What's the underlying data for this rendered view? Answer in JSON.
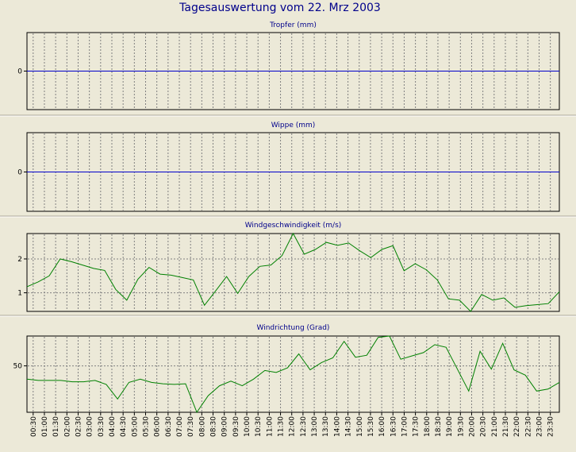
{
  "window": {
    "title": "Tagesauswertung vom 22. Mrz 2003"
  },
  "colors": {
    "background": "#ece9d8",
    "panel_title": "#00008b",
    "zero_line": "#0000cc",
    "series_line": "#008000",
    "grid": "#808080",
    "frame": "#000000"
  },
  "chart_data": [
    {
      "type": "line",
      "title": "Tropfer (mm)",
      "yticks": [
        0
      ],
      "ylim": [
        -1,
        1
      ],
      "grid": true,
      "series": [
        {
          "values": [
            0,
            0
          ]
        }
      ]
    },
    {
      "type": "line",
      "title": "Wippe (mm)",
      "yticks": [
        0
      ],
      "ylim": [
        -1,
        1
      ],
      "grid": true,
      "series": [
        {
          "values": [
            0,
            0
          ]
        }
      ]
    },
    {
      "type": "line",
      "title": "Windgeschwindigkeit (m/s)",
      "yticks": [
        1,
        2
      ],
      "ylim": [
        0.45,
        2.75
      ],
      "grid": true,
      "series": [
        {
          "values": [
            1.18,
            1.32,
            1.5,
            2.0,
            1.92,
            1.82,
            1.72,
            1.66,
            1.1,
            0.78,
            1.4,
            1.75,
            1.55,
            1.52,
            1.45,
            1.38,
            0.63,
            1.05,
            1.48,
            0.98,
            1.48,
            1.78,
            1.82,
            2.1,
            2.75,
            2.14,
            2.28,
            2.49,
            2.4,
            2.47,
            2.24,
            2.04,
            2.28,
            2.39,
            1.65,
            1.86,
            1.68,
            1.38,
            0.82,
            0.78,
            0.45,
            0.95,
            0.78,
            0.85,
            0.57,
            0.62,
            0.65,
            0.68,
            1.03
          ]
        }
      ]
    },
    {
      "type": "line",
      "title": "Windrichtung (Grad)",
      "yticks": [
        50
      ],
      "ylim": [
        -20,
        95
      ],
      "grid": true,
      "series": [
        {
          "values": [
            30,
            28,
            28,
            28,
            26,
            26,
            28,
            22,
            0,
            25,
            30,
            25,
            23,
            22,
            23,
            -20,
            5,
            20,
            27,
            20,
            30,
            43,
            40,
            47,
            68,
            44,
            55,
            62,
            87,
            63,
            66,
            93,
            95,
            60,
            65,
            70,
            82,
            78,
            45,
            12,
            72,
            45,
            84,
            44,
            36,
            12,
            15,
            25
          ]
        }
      ]
    }
  ],
  "xticks": [
    "00:30",
    "01:00",
    "01:30",
    "02:00",
    "02:30",
    "03:00",
    "03:30",
    "04:00",
    "04:30",
    "05:00",
    "05:30",
    "06:00",
    "06:30",
    "07:00",
    "07:30",
    "08:00",
    "08:30",
    "09:00",
    "09:30",
    "10:00",
    "10:30",
    "11:00",
    "11:30",
    "12:00",
    "12:30",
    "13:00",
    "13:30",
    "14:00",
    "14:30",
    "15:00",
    "15:30",
    "16:00",
    "16:30",
    "17:00",
    "17:30",
    "18:00",
    "18:30",
    "19:00",
    "19:30",
    "20:00",
    "20:30",
    "21:00",
    "21:30",
    "22:00",
    "22:30",
    "23:00",
    "23:30"
  ]
}
